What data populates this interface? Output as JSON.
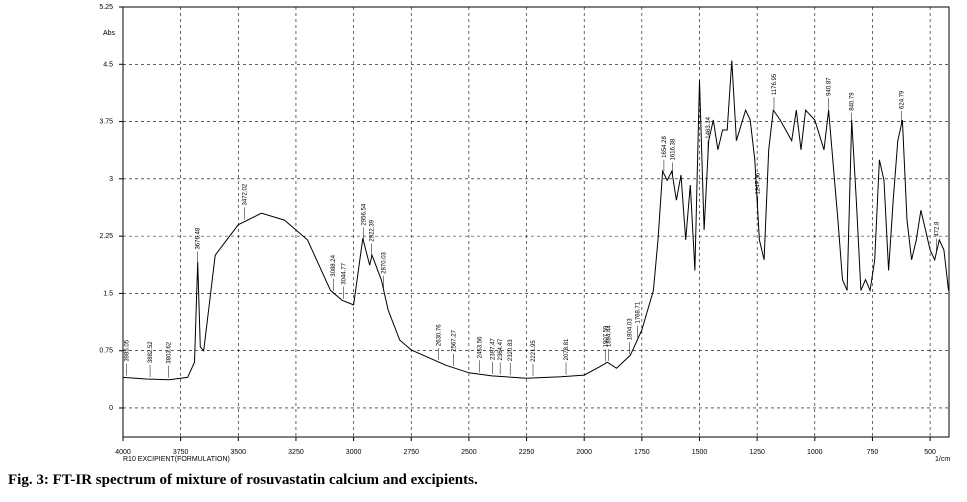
{
  "chart_data": {
    "type": "line",
    "y_label": "Abs",
    "x_caption": "R10 EXCIPIENT(FORMULATION)",
    "x_label": "1/cm",
    "caption": "Fig. 3: FT-IR spectrum of mixture of rosuvastatin calcium and excipients.",
    "xlim": [
      4000,
      418
    ],
    "ylim": [
      -0.38,
      5.25
    ],
    "xticks": [
      4000,
      3750,
      3500,
      3250,
      3000,
      2750,
      2500,
      2250,
      2000,
      1750,
      1500,
      1250,
      1000,
      750,
      500
    ],
    "yticks": [
      0,
      0.75,
      1.5,
      2.25,
      3,
      3.75,
      4.5,
      5.25
    ],
    "grid": true,
    "color": "#000000",
    "x": [
      4000,
      3900,
      3800,
      3720,
      3690,
      3676,
      3665,
      3650,
      3600,
      3500,
      3400,
      3300,
      3200,
      3100,
      3050,
      3000,
      2960,
      2930,
      2920,
      2880,
      2850,
      2800,
      2750,
      2600,
      2500,
      2400,
      2250,
      2100,
      2000,
      1920,
      1900,
      1860,
      1800,
      1750,
      1700,
      1680,
      1660,
      1640,
      1620,
      1600,
      1580,
      1560,
      1540,
      1520,
      1500,
      1480,
      1460,
      1440,
      1420,
      1400,
      1380,
      1360,
      1340,
      1300,
      1280,
      1260,
      1240,
      1220,
      1200,
      1180,
      1150,
      1100,
      1080,
      1060,
      1040,
      1000,
      960,
      940,
      900,
      880,
      860,
      840,
      820,
      800,
      780,
      760,
      740,
      720,
      700,
      680,
      660,
      640,
      620,
      600,
      580,
      560,
      540,
      520,
      500,
      480,
      460,
      440,
      420
    ],
    "values": [
      0.4,
      0.38,
      0.37,
      0.4,
      0.6,
      1.91,
      0.8,
      0.75,
      2.0,
      2.4,
      2.55,
      2.46,
      2.2,
      1.54,
      1.41,
      1.35,
      2.22,
      1.87,
      2.0,
      1.68,
      1.28,
      0.89,
      0.76,
      0.56,
      0.46,
      0.42,
      0.39,
      0.41,
      0.43,
      0.56,
      0.6,
      0.52,
      0.69,
      1.02,
      1.54,
      2.2,
      3.1,
      2.98,
      3.1,
      2.72,
      3.05,
      2.2,
      2.92,
      1.8,
      4.29,
      2.33,
      3.5,
      3.77,
      3.38,
      3.64,
      3.64,
      4.55,
      3.5,
      3.9,
      3.77,
      3.25,
      2.2,
      1.94,
      3.38,
      3.9,
      3.77,
      3.5,
      3.9,
      3.38,
      3.9,
      3.77,
      3.38,
      3.9,
      2.46,
      1.68,
      1.54,
      3.77,
      2.72,
      1.54,
      1.68,
      1.54,
      1.94,
      3.25,
      2.98,
      1.8,
      2.72,
      3.5,
      3.77,
      2.46,
      1.94,
      2.2,
      2.59,
      2.33,
      2.07,
      1.94,
      2.2,
      2.07,
      1.54
    ],
    "peaks": [
      3985.05,
      3882.52,
      3803.62,
      3676.48,
      3472.02,
      3088.24,
      3044.77,
      2956.54,
      2922.39,
      2870.03,
      2630.76,
      2567.27,
      2453.56,
      2397.47,
      2364.47,
      2320.83,
      2221.95,
      2078.81,
      1907.59,
      1894.44,
      1804.03,
      1768.71,
      1654.28,
      1616.38,
      1463.14,
      1247.36,
      1176.95,
      940.87,
      840.79,
      624.79,
      472.8
    ]
  }
}
